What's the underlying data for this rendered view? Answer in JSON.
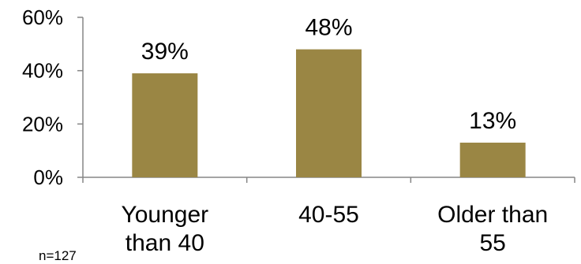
{
  "chart_data": {
    "type": "bar",
    "categories": [
      [
        "Younger",
        "than 40"
      ],
      [
        "40-55"
      ],
      [
        "Older than",
        "55"
      ]
    ],
    "values": [
      39,
      48,
      13
    ],
    "data_labels": [
      "39%",
      "48%",
      "13%"
    ],
    "ylim": [
      0,
      60
    ],
    "yticks": [
      {
        "value": 0,
        "label": "0%"
      },
      {
        "value": 20,
        "label": "20%"
      },
      {
        "value": 40,
        "label": "40%"
      },
      {
        "value": 60,
        "label": "60%"
      }
    ],
    "bar_color": "#9a8644",
    "axis_color": "#868686",
    "grid": false,
    "legend": "none",
    "note": "n=127"
  }
}
